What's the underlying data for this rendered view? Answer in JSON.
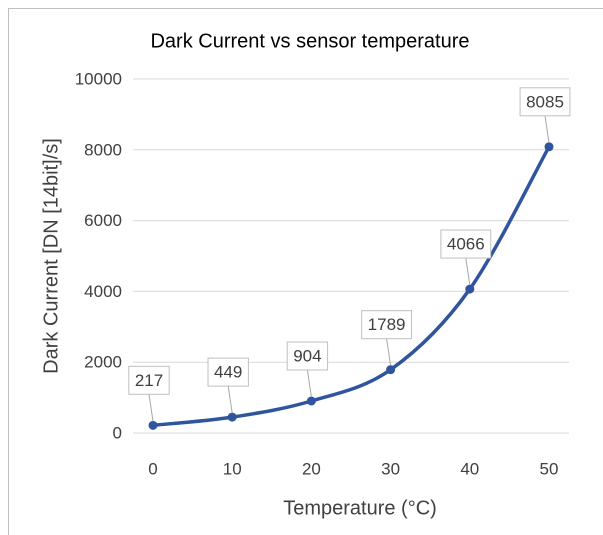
{
  "chart_data": {
    "type": "line",
    "title": "Dark Current vs sensor temperature",
    "x_label": "Temperature (°C)",
    "y_label": "Dark Current [DN [14bit]/s]",
    "x": [
      0,
      10,
      20,
      30,
      40,
      50
    ],
    "series": [
      {
        "name": "Dark Current",
        "color": "#2f559e",
        "values": [
          217,
          449,
          904,
          1789,
          4066,
          8085
        ]
      }
    ],
    "xlim": [
      0,
      50
    ],
    "xticks": [
      0,
      10,
      20,
      30,
      40,
      50
    ],
    "ylim": [
      0,
      10000
    ],
    "yticks": [
      0,
      2000,
      4000,
      6000,
      8000,
      10000
    ],
    "grid": true,
    "smooth": true
  }
}
